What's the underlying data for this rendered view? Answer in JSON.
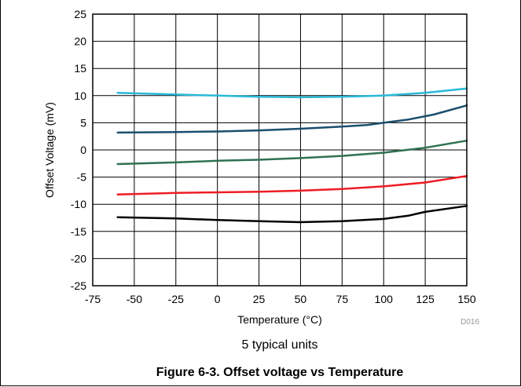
{
  "chart_data": {
    "type": "line",
    "title": "",
    "xlabel": "Temperature (°C)",
    "ylabel": "Offset Voltage (mV)",
    "xlim": [
      -75,
      150
    ],
    "ylim": [
      -25,
      25
    ],
    "xticks": [
      "-75",
      "-50",
      "-25",
      "0",
      "25",
      "50",
      "75",
      "100",
      "125",
      "150"
    ],
    "yticks": [
      "25",
      "20",
      "15",
      "10",
      "5",
      "0",
      "-5",
      "-10",
      "-15",
      "-20",
      "-25"
    ],
    "grid": true,
    "legend": "none",
    "series": [
      {
        "color": "#29b9d8",
        "x": [
          -60,
          -25,
          0,
          25,
          50,
          75,
          100,
          125,
          150
        ],
        "y": [
          10.5,
          10.2,
          10.0,
          9.8,
          9.7,
          9.8,
          10.0,
          10.5,
          11.3
        ]
      },
      {
        "color": "#1b4e6e",
        "x": [
          -60,
          -25,
          0,
          25,
          50,
          75,
          90,
          100,
          115,
          130,
          150
        ],
        "y": [
          3.2,
          3.3,
          3.4,
          3.6,
          3.9,
          4.3,
          4.6,
          5.0,
          5.6,
          6.5,
          8.2
        ]
      },
      {
        "color": "#2f7152",
        "x": [
          -60,
          -25,
          0,
          25,
          50,
          75,
          100,
          125,
          150
        ],
        "y": [
          -2.6,
          -2.3,
          -2.0,
          -1.8,
          -1.5,
          -1.1,
          -0.5,
          0.4,
          1.7
        ]
      },
      {
        "color": "#ee1c24",
        "x": [
          -60,
          -25,
          0,
          25,
          50,
          75,
          100,
          125,
          150
        ],
        "y": [
          -8.2,
          -7.9,
          -7.8,
          -7.7,
          -7.5,
          -7.2,
          -6.7,
          -6.0,
          -4.8
        ]
      },
      {
        "color": "#000000",
        "x": [
          -60,
          -25,
          0,
          25,
          50,
          75,
          100,
          115,
          125,
          150
        ],
        "y": [
          -12.4,
          -12.6,
          -12.9,
          -13.1,
          -13.3,
          -13.1,
          -12.7,
          -12.1,
          -11.4,
          -10.3
        ]
      }
    ]
  },
  "figure": {
    "code": "D016",
    "subtitle": "5 typical units",
    "title": "Figure 6-3. Offset voltage vs Temperature"
  }
}
